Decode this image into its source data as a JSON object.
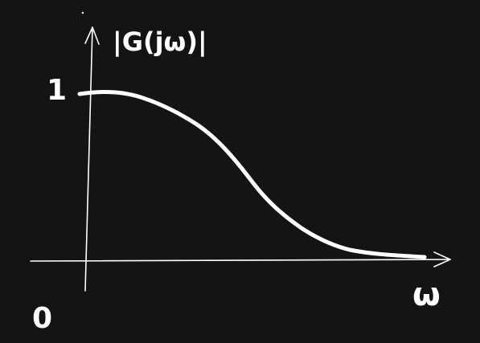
{
  "diagram": {
    "y_axis_label": "|G(jω)|",
    "x_axis_label": "ω",
    "y_tick_label": "1",
    "origin_label": "0",
    "curve_description_type": "low-pass magnitude response sketch"
  },
  "colors": {
    "background": "#141414",
    "ink": "#ffffff"
  }
}
